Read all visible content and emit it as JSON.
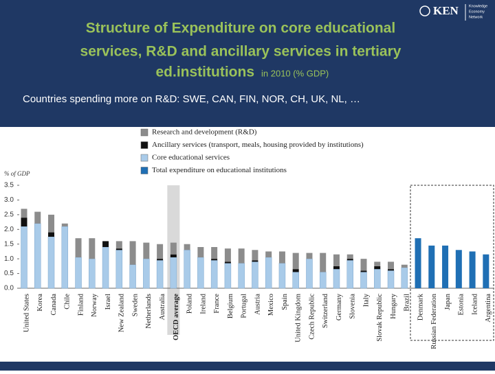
{
  "header": {
    "title_lines": [
      "Structure of Expenditure on core educational",
      "services, R&D and ancillary services in tertiary",
      "ed.institutions"
    ],
    "title_suffix": "in 2010 (% GDP)",
    "subtitle": "Countries spending more on R&D: SWE, CAN, FIN, NOR, CH, UK, NL, …",
    "logo": "KEN",
    "logo_small": [
      "Knowledge",
      "Economy",
      "Network"
    ]
  },
  "chart_data": {
    "type": "bar",
    "stacked": true,
    "y_label": "% of GDP",
    "categories": [
      "United States",
      "Korea",
      "Canada",
      "Chile",
      "Finland",
      "Norway",
      "Israel",
      "New Zealand",
      "Sweden",
      "Netherlands",
      "Australia",
      "OECD average",
      "Poland",
      "Ireland",
      "France",
      "Belgium",
      "Portugal",
      "Austria",
      "Mexico",
      "Spain",
      "United Kingdom",
      "Czech Republic",
      "Switzerland",
      "Germany",
      "Slovenia",
      "Italy",
      "Slovak Republic",
      "Hungary",
      "Brazil",
      "Denmark",
      "Russian Federation",
      "Japan",
      "Estonia",
      "Iceland",
      "Argentina"
    ],
    "highlight_category": "OECD average",
    "series": [
      {
        "name": "Core educational services",
        "color": "#a9cbe9",
        "values": [
          2.1,
          2.2,
          1.75,
          2.1,
          1.05,
          1.0,
          1.4,
          1.3,
          0.8,
          1.0,
          0.95,
          1.05,
          1.3,
          1.05,
          0.95,
          0.85,
          0.85,
          0.9,
          1.05,
          0.85,
          0.55,
          1.0,
          0.55,
          0.65,
          0.95,
          0.55,
          0.65,
          0.6,
          0.7,
          null,
          null,
          null,
          null,
          null,
          null
        ]
      },
      {
        "name": "Ancillary services (transport, meals, housing provided by institutions)",
        "color": "#111111",
        "values": [
          0.3,
          0.0,
          0.15,
          0.0,
          0.0,
          0.0,
          0.2,
          0.05,
          0.0,
          0.0,
          0.05,
          0.1,
          0.0,
          0.0,
          0.05,
          0.05,
          0.0,
          0.05,
          0.0,
          0.0,
          0.1,
          0.0,
          0.0,
          0.1,
          0.05,
          0.05,
          0.1,
          0.05,
          0.0,
          null,
          null,
          null,
          null,
          null,
          null
        ]
      },
      {
        "name": "Research and development (R&D)",
        "color": "#8c8c8c",
        "values": [
          0.3,
          0.4,
          0.6,
          0.1,
          0.65,
          0.7,
          0.0,
          0.25,
          0.8,
          0.55,
          0.5,
          0.4,
          0.2,
          0.35,
          0.4,
          0.45,
          0.5,
          0.35,
          0.2,
          0.4,
          0.55,
          0.2,
          0.65,
          0.4,
          0.15,
          0.4,
          0.15,
          0.25,
          0.1,
          null,
          null,
          null,
          null,
          null,
          null
        ]
      },
      {
        "name": "Total expenditure on educational institutions",
        "color": "#1f6fb4",
        "values": [
          null,
          null,
          null,
          null,
          null,
          null,
          null,
          null,
          null,
          null,
          null,
          null,
          null,
          null,
          null,
          null,
          null,
          null,
          null,
          null,
          null,
          null,
          null,
          null,
          null,
          null,
          null,
          null,
          null,
          1.7,
          1.45,
          1.45,
          1.3,
          1.25,
          1.15
        ]
      }
    ],
    "legend_order": [
      2,
      1,
      0,
      3
    ],
    "ylim": [
      0,
      3.5
    ],
    "yticks": [
      {
        "value": 0,
        "label": "0.0"
      },
      0.5,
      {
        "value": 1,
        "label": "1.0"
      },
      1.5,
      {
        "value": 2,
        "label": "2.0"
      },
      2.5,
      {
        "value": 3,
        "label": "3.0"
      },
      3.5
    ]
  }
}
